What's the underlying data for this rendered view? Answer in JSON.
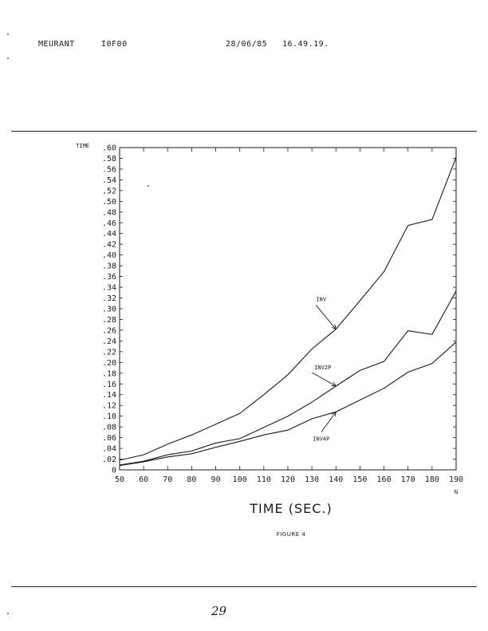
{
  "header": {
    "user": "MEURANT",
    "code": "I0F00",
    "date": "28/06/85",
    "time": "16.49.19."
  },
  "chart_data": {
    "type": "line",
    "title": "",
    "ylabel": "TIME",
    "xlabel": "TIME (SEC.)",
    "x_axis_end_label": "N",
    "x": [
      50,
      60,
      70,
      80,
      90,
      100,
      110,
      120,
      130,
      140,
      150,
      160,
      170,
      180,
      190
    ],
    "x_tick_labels": [
      "50",
      "60",
      "70",
      "80",
      "90",
      "100",
      "110",
      "120",
      "130",
      "140",
      "150",
      "160",
      "170",
      "180",
      "190"
    ],
    "xlim": [
      50,
      190
    ],
    "ylim": [
      0,
      0.6
    ],
    "y_ticks": [
      0,
      0.02,
      0.04,
      0.06,
      0.08,
      0.1,
      0.12,
      0.14,
      0.16,
      0.18,
      0.2,
      0.22,
      0.24,
      0.26,
      0.28,
      0.3,
      0.32,
      0.34,
      0.36,
      0.38,
      0.4,
      0.42,
      0.44,
      0.46,
      0.48,
      0.5,
      0.52,
      0.54,
      0.56,
      0.58,
      0.6
    ],
    "y_tick_labels": [
      "0",
      ".02",
      ".04",
      ".06",
      ".08",
      ".10",
      ".12",
      ".14",
      ".16",
      ".18",
      ".20",
      ".22",
      ".24",
      ".26",
      ".28",
      ".30",
      ".32",
      ".34",
      ".36",
      ".38",
      ".40",
      ".42",
      ".44",
      ".46",
      ".48",
      ".50",
      ".52",
      ".54",
      ".56",
      ".58",
      ".60"
    ],
    "series": [
      {
        "name": "INV",
        "values": [
          0.018,
          0.028,
          0.048,
          0.065,
          0.085,
          0.105,
          0.14,
          0.177,
          0.225,
          0.262,
          0.315,
          0.369,
          0.455,
          0.466,
          0.582
        ]
      },
      {
        "name": "INV2P",
        "values": [
          0.009,
          0.016,
          0.028,
          0.035,
          0.05,
          0.058,
          0.079,
          0.1,
          0.126,
          0.156,
          0.185,
          0.202,
          0.259,
          0.252,
          0.333
        ]
      },
      {
        "name": "INV4P",
        "values": [
          0.008,
          0.015,
          0.024,
          0.03,
          0.042,
          0.053,
          0.065,
          0.074,
          0.095,
          0.108,
          0.13,
          0.152,
          0.182,
          0.198,
          0.238
        ]
      }
    ],
    "annotations": [
      {
        "text": "INV",
        "series": "INV",
        "at_x": 140
      },
      {
        "text": "INV2P",
        "series": "INV2P",
        "at_x": 140
      },
      {
        "text": "INV4P",
        "series": "INV4P",
        "at_x": 140
      }
    ],
    "grid": false,
    "legend": "none"
  },
  "caption": {
    "figure": "FIGURE 4"
  },
  "page_number": "29",
  "colors": {
    "ink": "#1a1a1a",
    "paper": "#ffffff"
  }
}
